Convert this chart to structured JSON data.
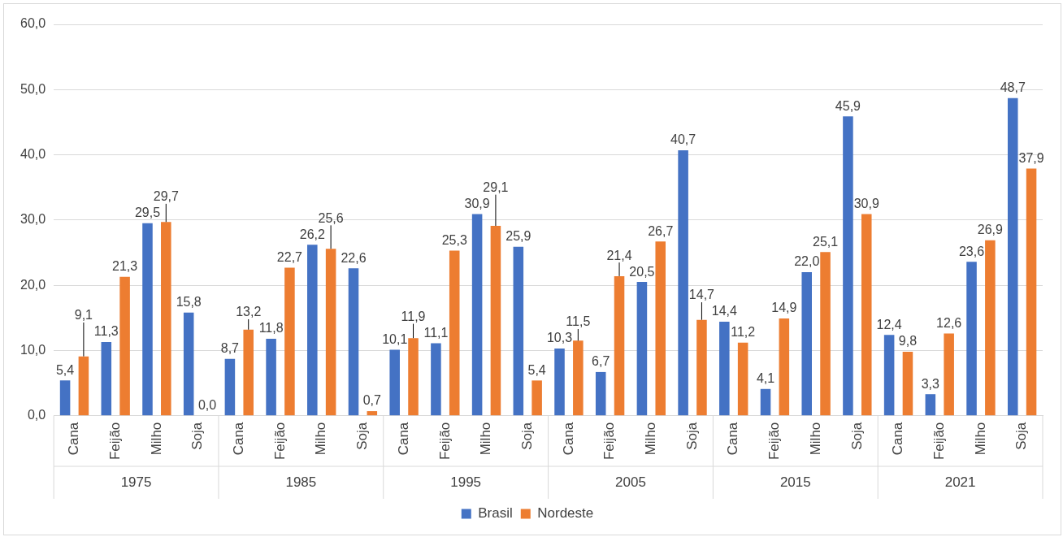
{
  "chart_data": {
    "type": "bar",
    "categories": [
      "Cana",
      "Feijão",
      "Milho",
      "Soja",
      "Cana",
      "Feijão",
      "Milho",
      "Soja",
      "Cana",
      "Feijão",
      "Milho",
      "Soja",
      "Cana",
      "Feijão",
      "Milho",
      "Soja",
      "Cana",
      "Feijão",
      "Milho",
      "Soja",
      "Cana",
      "Feijão",
      "Milho",
      "Soja"
    ],
    "series": [
      {
        "name": "Brasil",
        "color": "#4472c4",
        "values": [
          5.4,
          11.3,
          29.5,
          15.8,
          8.7,
          11.8,
          26.2,
          22.6,
          10.1,
          11.1,
          30.9,
          25.9,
          10.3,
          6.7,
          20.5,
          40.7,
          14.4,
          4.1,
          22.0,
          45.9,
          12.4,
          3.3,
          23.6,
          48.7
        ],
        "value_labels": [
          "5,4",
          "11,3",
          "29,5",
          "15,8",
          "8,7",
          "11,8",
          "26,2",
          "22,6",
          "10,1",
          "11,1",
          "30,9",
          "25,9",
          "10,3",
          "6,7",
          "20,5",
          "40,7",
          "14,4",
          "4,1",
          "22,0",
          "45,9",
          "12,4",
          "3,3",
          "23,6",
          "48,7"
        ]
      },
      {
        "name": "Nordeste",
        "color": "#ed7d31",
        "values": [
          9.1,
          21.3,
          29.7,
          0.0,
          13.2,
          22.7,
          25.6,
          0.7,
          11.9,
          25.3,
          29.1,
          5.4,
          11.5,
          21.4,
          26.7,
          14.7,
          11.2,
          14.9,
          25.1,
          30.9,
          9.8,
          12.6,
          26.9,
          37.9
        ],
        "value_labels": [
          "9,1",
          "21,3",
          "29,7",
          "0,0",
          "13,2",
          "22,7",
          "25,6",
          "0,7",
          "11,9",
          "25,3",
          "29,1",
          "5,4",
          "11,5",
          "21,4",
          "26,7",
          "14,7",
          "11,2",
          "14,9",
          "25,1",
          "30,9",
          "9,8",
          "12,6",
          "26,9",
          "37,9"
        ]
      }
    ],
    "annotations": [
      "1975",
      "1985",
      "1995",
      "2005",
      "2015",
      "2021"
    ],
    "ylim": [
      0,
      60
    ],
    "yticks": [
      {
        "value": 0,
        "label": "0,0"
      },
      {
        "value": 10,
        "label": "10,0"
      },
      {
        "value": 20,
        "label": "20,0"
      },
      {
        "value": 30,
        "label": "30,0"
      },
      {
        "value": 40,
        "label": "40,0"
      },
      {
        "value": 50,
        "label": "50,0"
      },
      {
        "value": 60,
        "label": "60,0"
      }
    ],
    "grid": "y",
    "legend": "bottom"
  }
}
